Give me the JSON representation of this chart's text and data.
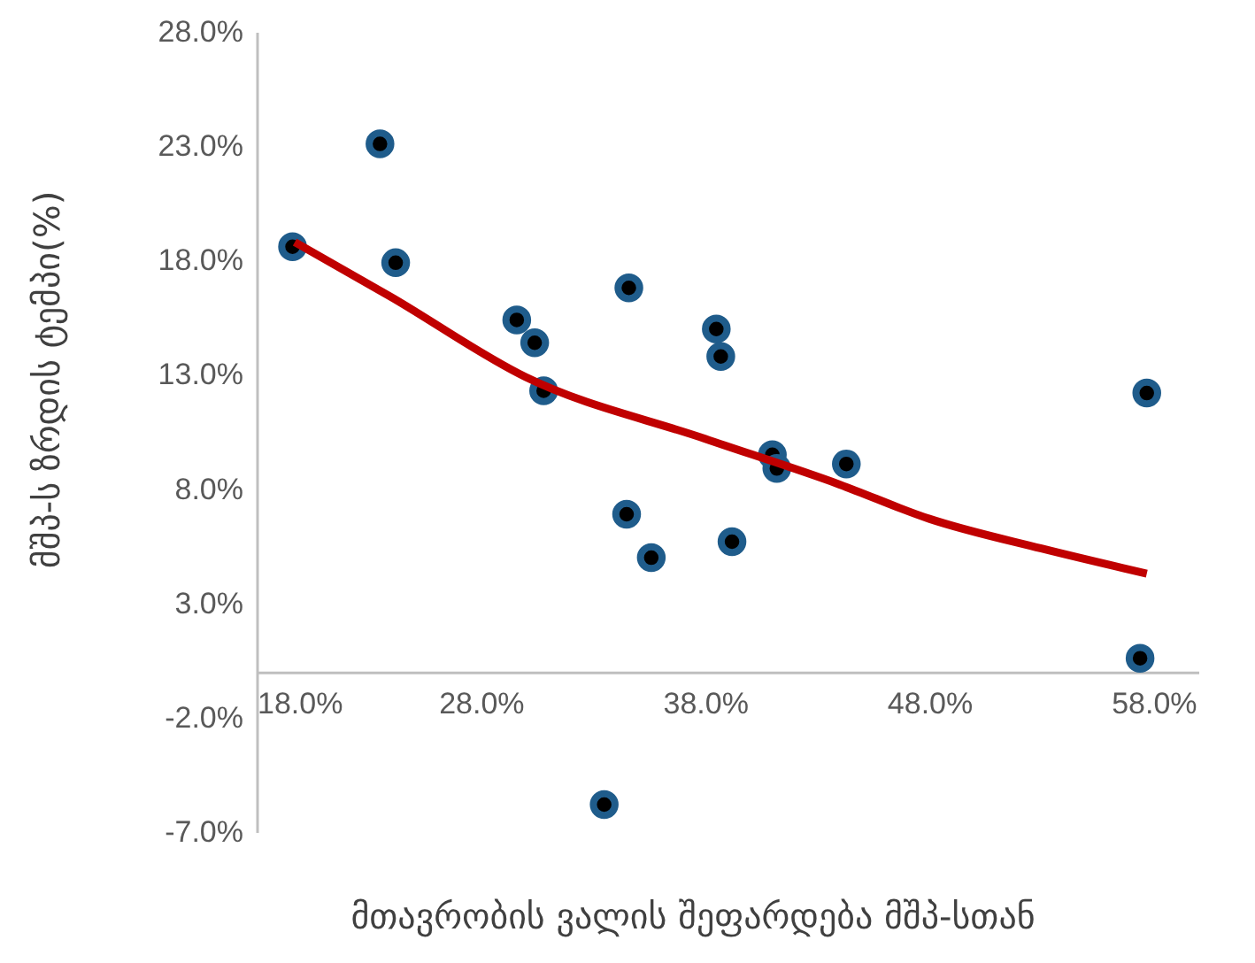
{
  "chart_data": {
    "type": "scatter",
    "xlabel": "მთავრობის ვალის შეფარდება მშპ-სთან",
    "ylabel": "მშპ-ს ზრდის ტემპი(%)",
    "xlim": [
      18,
      60
    ],
    "xticks": [
      {
        "value": 18,
        "label": "18.0%"
      },
      {
        "value": 28,
        "label": "28.0%"
      },
      {
        "value": 38,
        "label": "38.0%"
      },
      {
        "value": 48,
        "label": "48.0%"
      },
      {
        "value": 58,
        "label": "58.0%"
      }
    ],
    "ylim": [
      -7,
      28
    ],
    "yticks": [
      {
        "value": -7,
        "label": "-7.0%"
      },
      {
        "value": -2,
        "label": "-2.0%"
      },
      {
        "value": 3,
        "label": "3.0%"
      },
      {
        "value": 8,
        "label": "8.0%"
      },
      {
        "value": 13,
        "label": "13.0%"
      },
      {
        "value": 18,
        "label": "18.0%"
      },
      {
        "value": 23,
        "label": "23.0%"
      },
      {
        "value": 28,
        "label": "28.0%"
      }
    ],
    "grid": false,
    "series": [
      {
        "type": "scatter",
        "marker": "circle",
        "color": "#1f5c8b",
        "x": [
          19.6,
          23.5,
          24.2,
          29.6,
          30.4,
          30.8,
          34.6,
          34.5,
          35.6,
          38.5,
          38.7,
          39.2,
          41.0,
          41.2,
          44.3,
          57.7,
          57.4,
          33.5
        ],
        "values": [
          18.6,
          23.1,
          17.9,
          15.4,
          14.4,
          12.3,
          16.8,
          6.9,
          5.0,
          15.0,
          13.8,
          5.7,
          9.5,
          8.9,
          9.1,
          12.2,
          0.6,
          -5.8
        ]
      },
      {
        "type": "line",
        "color": "#c00000",
        "line_style": "solid",
        "x": [
          19.7,
          24,
          30,
          38,
          44,
          48,
          53,
          57.7
        ],
        "values": [
          18.8,
          16.4,
          12.9,
          10.2,
          8.2,
          6.7,
          5.4,
          4.3
        ]
      }
    ]
  }
}
